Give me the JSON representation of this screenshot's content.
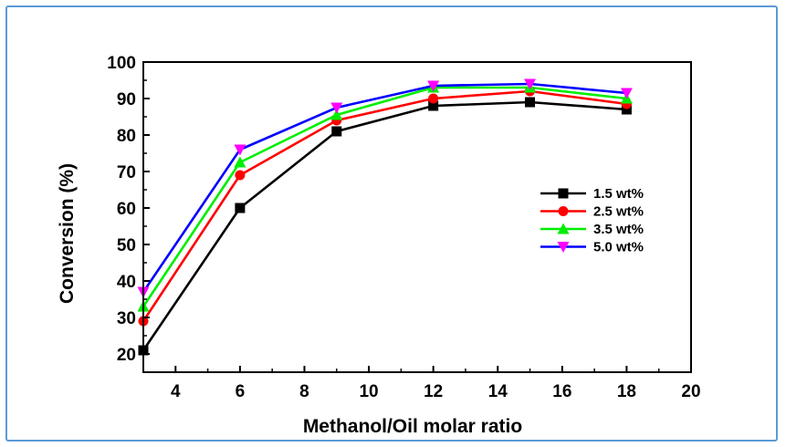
{
  "chart_data": {
    "type": "line",
    "xlabel": "Methanol/Oil molar ratio",
    "ylabel": "Conversion (%)",
    "xlim": [
      3,
      20
    ],
    "ylim": [
      15,
      100
    ],
    "xticks": [
      4,
      6,
      8,
      10,
      12,
      14,
      16,
      18,
      20
    ],
    "yticks": [
      20,
      30,
      40,
      50,
      60,
      70,
      80,
      90,
      100
    ],
    "x": [
      3,
      6,
      9,
      12,
      15,
      18
    ],
    "grid": false,
    "legend_position": "right",
    "series": [
      {
        "name": "1.5 wt%",
        "color": "#000000",
        "marker": "square",
        "values": [
          21,
          60,
          81,
          88,
          89,
          87
        ]
      },
      {
        "name": "2.5 wt%",
        "color": "#ff0000",
        "marker": "circle",
        "values": [
          29,
          69,
          84,
          90,
          92,
          88.5
        ]
      },
      {
        "name": "3.5 wt%",
        "color": "#00ee00",
        "marker": "triangle-up",
        "values": [
          33,
          72.5,
          85.5,
          93,
          93,
          90
        ]
      },
      {
        "name": "5.0 wt%",
        "color": "#0000ff",
        "marker": "triangle-down",
        "marker_color": "#ff00ff",
        "values": [
          37,
          76,
          87.5,
          93.5,
          94,
          91.5
        ]
      }
    ]
  }
}
